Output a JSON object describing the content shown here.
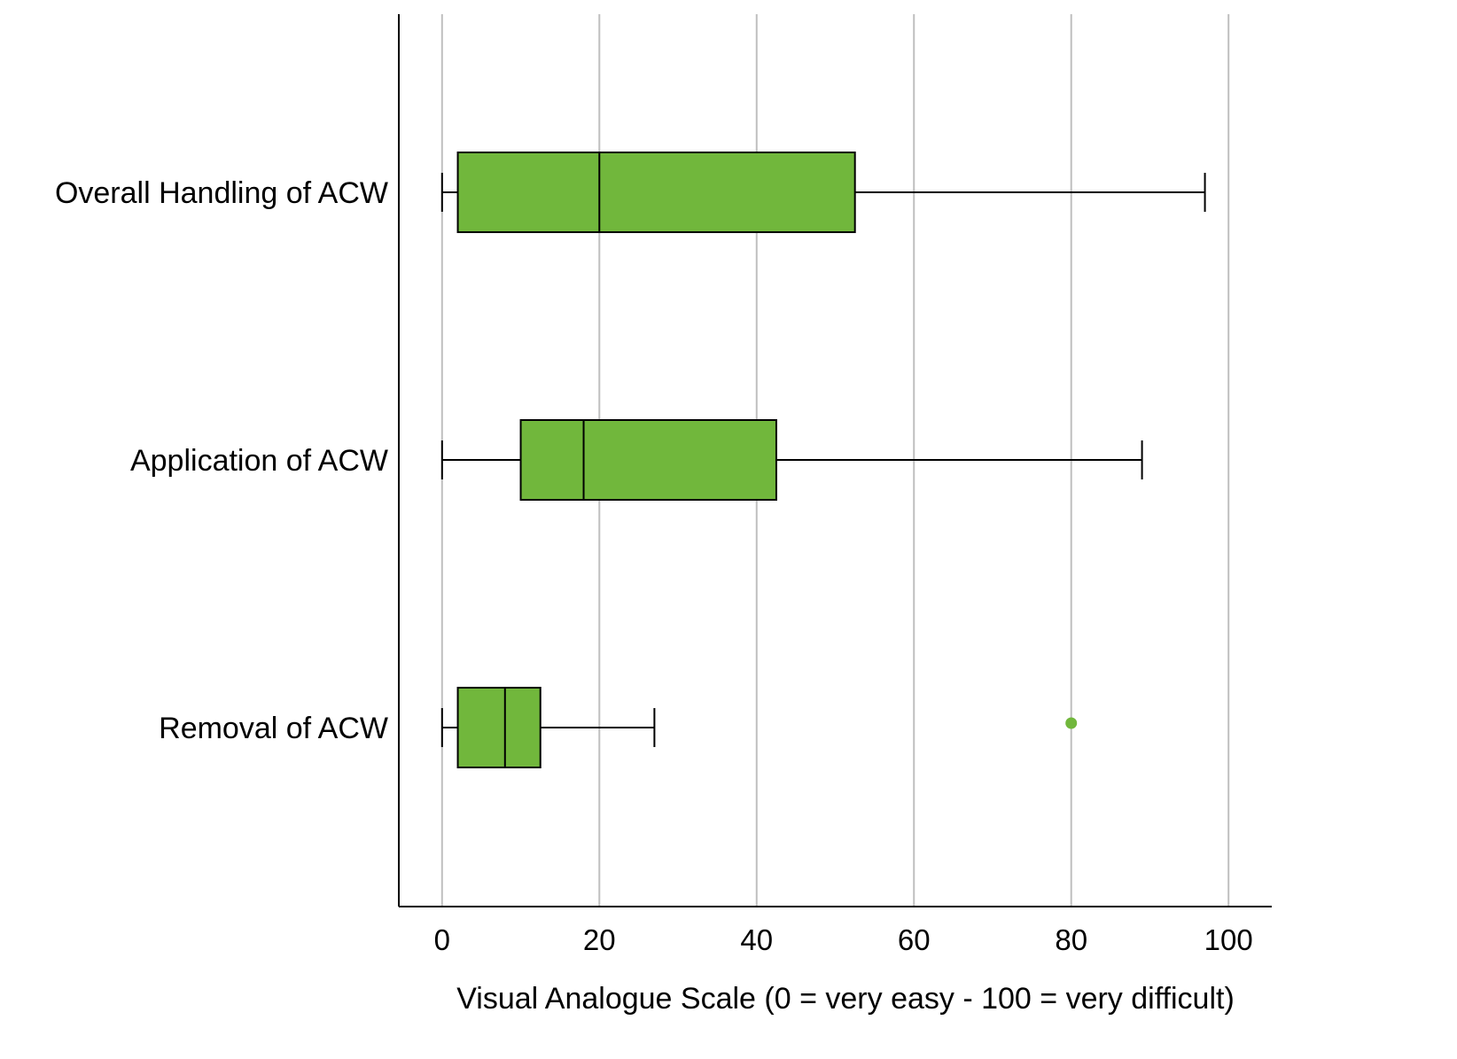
{
  "chart_data": {
    "type": "boxplot",
    "orientation": "horizontal",
    "title": "",
    "xlabel": "Visual Analogue Scale  (0 = very easy  - 100 = very difficult)",
    "ylabel": "",
    "xlim": [
      -5.5,
      105.5
    ],
    "xticks": [
      0,
      20,
      40,
      60,
      80,
      100
    ],
    "xtick_labels": [
      "0",
      "20",
      "40",
      "60",
      "80",
      "100"
    ],
    "grid": "vertical",
    "box_color": "#71b73c",
    "outlier_color": "#71b73c",
    "grid_color": "#bfbfbf",
    "categories": [
      "Overall Handling of ACW",
      "Application of ACW",
      "Removal of ACW"
    ],
    "series": [
      {
        "name": "Overall Handling of ACW",
        "min": 0,
        "q1": 2,
        "median": 20,
        "q3": 52.5,
        "max": 97,
        "outliers": []
      },
      {
        "name": "Application of ACW",
        "min": 0,
        "q1": 10,
        "median": 18,
        "q3": 42.5,
        "max": 89,
        "outliers": []
      },
      {
        "name": "Removal of ACW",
        "min": 0,
        "q1": 2,
        "median": 8,
        "q3": 12.5,
        "max": 27,
        "outliers": [
          80
        ]
      }
    ]
  }
}
